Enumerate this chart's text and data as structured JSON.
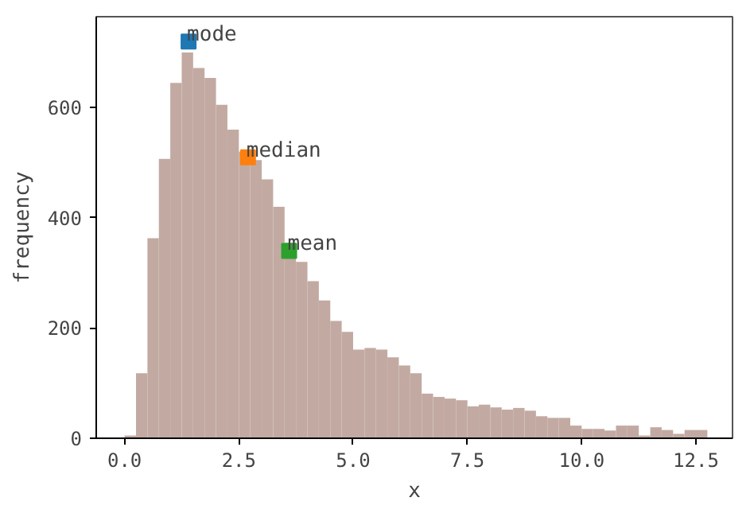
{
  "chart_data": {
    "type": "histogram",
    "xlabel": "x",
    "ylabel": "frequency",
    "bins": [
      0,
      0.25,
      0.5,
      0.75,
      1.0,
      1.25,
      1.5,
      1.75,
      2.0,
      2.25,
      2.5,
      2.75,
      3.0,
      3.25,
      3.5,
      3.75,
      4.0,
      4.25,
      4.5,
      4.75,
      5.0,
      5.25,
      5.5,
      5.75,
      6.0,
      6.25,
      6.5,
      6.75,
      7.0,
      7.25,
      7.5,
      7.75,
      8.0,
      8.25,
      8.5,
      8.75,
      9.0,
      9.25,
      9.5,
      9.75,
      10.0,
      10.25,
      10.5,
      10.75,
      11.0,
      11.25,
      11.5,
      11.75,
      12.0,
      12.25,
      12.5,
      12.75
    ],
    "values": [
      5,
      118,
      363,
      507,
      645,
      700,
      672,
      654,
      605,
      560,
      520,
      505,
      470,
      420,
      355,
      320,
      285,
      250,
      213,
      193,
      161,
      164,
      161,
      147,
      132,
      118,
      81,
      75,
      72,
      69,
      58,
      61,
      56,
      52,
      55,
      50,
      40,
      37,
      37,
      23,
      17,
      17,
      14,
      23,
      23,
      5,
      20,
      15,
      8,
      15,
      15
    ],
    "color": "#c2aaa2",
    "series": [
      {
        "type": "scatter",
        "name": "mode",
        "color": "#1f77b4",
        "x": [
          1.4
        ],
        "values": [
          720
        ]
      },
      {
        "type": "scatter",
        "name": "median",
        "color": "#ff7f0e",
        "x": [
          2.7
        ],
        "values": [
          510
        ]
      },
      {
        "type": "scatter",
        "name": "mean",
        "color": "#2ca02c",
        "x": [
          3.6
        ],
        "values": [
          340
        ]
      }
    ],
    "marker": "square",
    "xlim": [
      -0.62,
      13.3
    ],
    "ylim": [
      0,
      765
    ],
    "xticks": [
      {
        "value": 0,
        "label": "0.0"
      },
      {
        "value": 2.5,
        "label": "2.5"
      },
      {
        "value": 5,
        "label": "5.0"
      },
      {
        "value": 7.5,
        "label": "7.5"
      },
      {
        "value": 10,
        "label": "10.0"
      },
      {
        "value": 12.5,
        "label": "12.5"
      }
    ],
    "yticks": [
      0,
      200,
      400,
      600
    ],
    "grid": false
  }
}
